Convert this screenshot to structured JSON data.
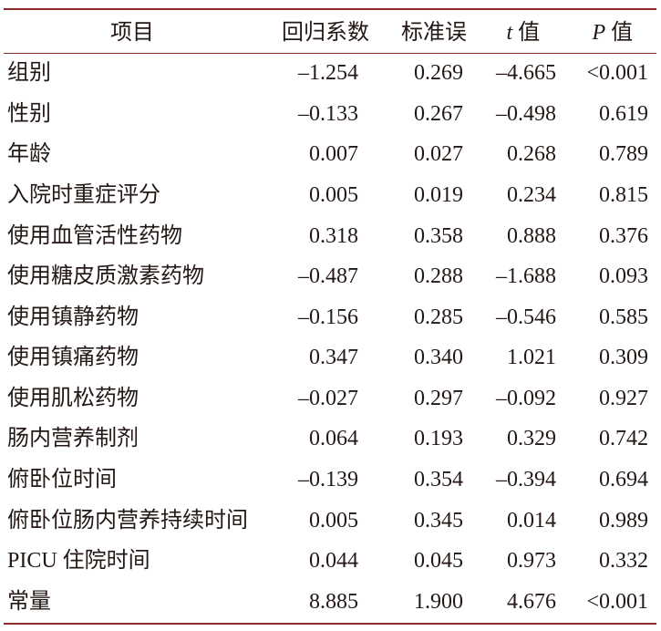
{
  "table": {
    "header": [
      "项目",
      "回归系数",
      "标准误",
      "t 值",
      "P 值"
    ],
    "rows": [
      [
        "组别",
        "–1.254",
        "0.269",
        "–4.665",
        "<0.001"
      ],
      [
        "性别",
        "–0.133",
        "0.267",
        "–0.498",
        "0.619"
      ],
      [
        "年龄",
        "0.007",
        "0.027",
        "0.268",
        "0.789"
      ],
      [
        "入院时重症评分",
        "0.005",
        "0.019",
        "0.234",
        "0.815"
      ],
      [
        "使用血管活性药物",
        "0.318",
        "0.358",
        "0.888",
        "0.376"
      ],
      [
        "使用糖皮质激素药物",
        "–0.487",
        "0.288",
        "–1.688",
        "0.093"
      ],
      [
        "使用镇静药物",
        "–0.156",
        "0.285",
        "–0.546",
        "0.585"
      ],
      [
        "使用镇痛药物",
        "0.347",
        "0.340",
        "1.021",
        "0.309"
      ],
      [
        "使用肌松药物",
        "–0.027",
        "0.297",
        "–0.092",
        "0.927"
      ],
      [
        "肠内营养制剂",
        "0.064",
        "0.193",
        "0.329",
        "0.742"
      ],
      [
        "俯卧位时间",
        "–0.139",
        "0.354",
        "–0.394",
        "0.694"
      ],
      [
        "俯卧位肠内营养持续时间",
        "0.005",
        "0.345",
        "0.014",
        "0.989"
      ],
      [
        "PICU 住院时间",
        "0.044",
        "0.045",
        "0.973",
        "0.332"
      ],
      [
        "常量",
        "8.885",
        "1.900",
        "4.676",
        "<0.001"
      ]
    ]
  }
}
